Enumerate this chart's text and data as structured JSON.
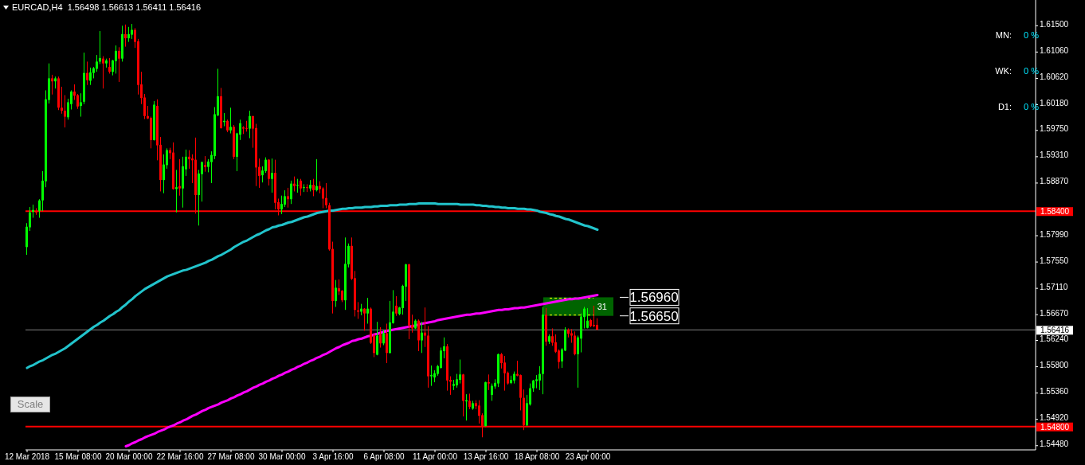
{
  "chart_data": {
    "type": "candlestick",
    "title": "EURCAD,H4  1.56498 1.56613 1.56411 1.56416",
    "categories": [
      "12 Mar 2018",
      null,
      null,
      null,
      null,
      null,
      null,
      null,
      null,
      null,
      null,
      null,
      null,
      null,
      null,
      null,
      "15 Mar 08:00",
      null,
      null,
      null,
      null,
      null,
      null,
      null,
      null,
      null,
      null,
      null,
      null,
      null,
      null,
      null,
      "20 Mar 00:00",
      null,
      null,
      null,
      null,
      null,
      null,
      null,
      null,
      null,
      null,
      null,
      null,
      null,
      null,
      null,
      "22 Mar 16:00",
      null,
      null,
      null,
      null,
      null,
      null,
      null,
      null,
      null,
      null,
      null,
      null,
      null,
      null,
      null,
      "27 Mar 08:00",
      null,
      null,
      null,
      null,
      null,
      null,
      null,
      null,
      null,
      null,
      null,
      null,
      null,
      null,
      null,
      "30 Mar 00:00",
      null,
      null,
      null,
      null,
      null,
      null,
      null,
      null,
      null,
      null,
      null,
      null,
      null,
      null,
      null,
      "3 Apr 16:00",
      null,
      null,
      null,
      null,
      null,
      null,
      null,
      null,
      null,
      null,
      null,
      null,
      null,
      null,
      null,
      "6 Apr 08:00",
      null,
      null,
      null,
      null,
      null,
      null,
      null,
      null,
      null,
      null,
      null,
      null,
      null,
      null,
      null,
      "11 Apr 00:00",
      null,
      null,
      null,
      null,
      null,
      null,
      null,
      null,
      null,
      null,
      null,
      null,
      null,
      null,
      null,
      "13 Apr 16:00",
      null,
      null,
      null,
      null,
      null,
      null,
      null,
      null,
      null,
      null,
      null,
      null,
      null,
      null,
      null,
      "18 Apr 08:00",
      null,
      null,
      null,
      null,
      null,
      null,
      null,
      null,
      null,
      null,
      null,
      null,
      null,
      null,
      null,
      "23 Apr 00:00",
      null,
      null,
      null
    ],
    "ohlc": [
      [
        1.578,
        1.582,
        1.5767,
        1.5814
      ],
      [
        1.5813,
        1.5847,
        1.5807,
        1.5838
      ],
      [
        1.5839,
        1.5851,
        1.5829,
        1.5842
      ],
      [
        1.584,
        1.5845,
        1.5834,
        1.5838
      ],
      [
        1.584,
        1.586,
        1.5829,
        1.5858
      ],
      [
        1.5858,
        1.5907,
        1.584,
        1.5891
      ],
      [
        1.589,
        1.6042,
        1.588,
        1.6027
      ],
      [
        1.6026,
        1.6087,
        1.602,
        1.6062
      ],
      [
        1.6062,
        1.6068,
        1.6035,
        1.6057
      ],
      [
        1.6057,
        1.6065,
        1.6045,
        1.6062
      ],
      [
        1.6062,
        1.6065,
        1.6009,
        1.6013
      ],
      [
        1.6013,
        1.6048,
        1.6003,
        1.6008
      ],
      [
        1.6008,
        1.6034,
        1.598,
        1.5998
      ],
      [
        1.5997,
        1.6028,
        1.5993,
        1.6022
      ],
      [
        1.6019,
        1.6042,
        1.601,
        1.604
      ],
      [
        1.604,
        1.6052,
        1.6026,
        1.6033
      ],
      [
        1.6034,
        1.6036,
        1.6011,
        1.6015
      ],
      [
        1.6016,
        1.6037,
        1.5998,
        1.6022
      ],
      [
        1.6023,
        1.6105,
        1.6019,
        1.6071
      ],
      [
        1.6071,
        1.609,
        1.6051,
        1.6059
      ],
      [
        1.6058,
        1.608,
        1.6051,
        1.6072
      ],
      [
        1.6071,
        1.6081,
        1.6062,
        1.6079
      ],
      [
        1.6078,
        1.6101,
        1.6073,
        1.609
      ],
      [
        1.609,
        1.6141,
        1.6086,
        1.6096
      ],
      [
        1.6095,
        1.6099,
        1.6045,
        1.6087
      ],
      [
        1.6087,
        1.6095,
        1.608,
        1.6092
      ],
      [
        1.6081,
        1.6096,
        1.607,
        1.6073
      ],
      [
        1.6073,
        1.6093,
        1.6067,
        1.6092
      ],
      [
        1.6091,
        1.6117,
        1.607,
        1.6108
      ],
      [
        1.6108,
        1.6114,
        1.6056,
        1.6095
      ],
      [
        1.6095,
        1.615,
        1.609,
        1.6136
      ],
      [
        1.6136,
        1.6152,
        1.6115,
        1.6129
      ],
      [
        1.6129,
        1.6148,
        1.6123,
        1.6136
      ],
      [
        1.6135,
        1.6153,
        1.6128,
        1.6143
      ],
      [
        1.6143,
        1.6146,
        1.6113,
        1.6123
      ],
      [
        1.6124,
        1.6128,
        1.6035,
        1.6051
      ],
      [
        1.6052,
        1.6073,
        1.6019,
        1.6029
      ],
      [
        1.603,
        1.6036,
        1.5994,
        1.5999
      ],
      [
        1.5999,
        1.6016,
        1.5994,
        1.5995
      ],
      [
        1.5996,
        1.5998,
        1.5945,
        1.5959
      ],
      [
        1.5959,
        1.6024,
        1.5958,
        1.6018
      ],
      [
        1.6016,
        1.6027,
        1.5925,
        1.595
      ],
      [
        1.5951,
        1.5964,
        1.5873,
        1.5892
      ],
      [
        1.5892,
        1.5935,
        1.587,
        1.5918
      ],
      [
        1.5917,
        1.5945,
        1.5911,
        1.5942
      ],
      [
        1.5942,
        1.5946,
        1.5927,
        1.5937
      ],
      [
        1.5938,
        1.5955,
        1.5876,
        1.5877
      ],
      [
        1.5877,
        1.5909,
        1.5838,
        1.588
      ],
      [
        1.5882,
        1.5927,
        1.5866,
        1.5878
      ],
      [
        1.5878,
        1.5931,
        1.5846,
        1.5915
      ],
      [
        1.591,
        1.5943,
        1.5899,
        1.5931
      ],
      [
        1.5931,
        1.5942,
        1.5911,
        1.5927
      ],
      [
        1.5928,
        1.5935,
        1.5887,
        1.5925
      ],
      [
        1.5926,
        1.5963,
        1.5836,
        1.5867
      ],
      [
        1.5867,
        1.5909,
        1.5816,
        1.5903
      ],
      [
        1.5902,
        1.5923,
        1.5856,
        1.5922
      ],
      [
        1.5917,
        1.5932,
        1.5906,
        1.5914
      ],
      [
        1.5914,
        1.5927,
        1.5905,
        1.5923
      ],
      [
        1.5922,
        1.594,
        1.5887,
        1.5934
      ],
      [
        1.5932,
        1.6014,
        1.5927,
        1.6002
      ],
      [
        1.6,
        1.6078,
        1.5999,
        1.6032
      ],
      [
        1.6032,
        1.6046,
        1.5978,
        1.5979
      ],
      [
        1.5989,
        1.6004,
        1.5982,
        1.5991
      ],
      [
        1.5991,
        1.5993,
        1.5972,
        1.5975
      ],
      [
        1.5975,
        1.6013,
        1.597,
        1.5981
      ],
      [
        1.5981,
        1.5984,
        1.5927,
        1.5931
      ],
      [
        1.5931,
        1.5971,
        1.5907,
        1.597
      ],
      [
        1.5968,
        1.5993,
        1.5959,
        1.5987
      ],
      [
        1.598,
        1.5982,
        1.5969,
        1.5978
      ],
      [
        1.5979,
        1.5991,
        1.5973,
        1.5978
      ],
      [
        1.5978,
        1.6008,
        1.5962,
        1.5999
      ],
      [
        1.5999,
        1.5999,
        1.5946,
        1.5978
      ],
      [
        1.5979,
        1.5986,
        1.5882,
        1.5913
      ],
      [
        1.5914,
        1.5928,
        1.5879,
        1.5899
      ],
      [
        1.59,
        1.5915,
        1.5888,
        1.5908
      ],
      [
        1.5907,
        1.593,
        1.5904,
        1.5926
      ],
      [
        1.5926,
        1.5927,
        1.5883,
        1.5894
      ],
      [
        1.5894,
        1.5928,
        1.5871,
        1.5904
      ],
      [
        1.5904,
        1.5926,
        1.5843,
        1.5854
      ],
      [
        1.5855,
        1.5861,
        1.5833,
        1.5843
      ],
      [
        1.5843,
        1.5866,
        1.5835,
        1.5852
      ],
      [
        1.5851,
        1.5875,
        1.5847,
        1.5865
      ],
      [
        1.5865,
        1.5879,
        1.5846,
        1.586
      ],
      [
        1.586,
        1.5891,
        1.5852,
        1.5886
      ],
      [
        1.5886,
        1.5898,
        1.5873,
        1.5882
      ],
      [
        1.5883,
        1.5894,
        1.5871,
        1.5884
      ],
      [
        1.5891,
        1.5894,
        1.5866,
        1.5878
      ],
      [
        1.5879,
        1.5885,
        1.5872,
        1.588
      ],
      [
        1.588,
        1.5885,
        1.5872,
        1.5879
      ],
      [
        1.5878,
        1.5892,
        1.5873,
        1.5884
      ],
      [
        1.5884,
        1.5894,
        1.5865,
        1.5875
      ],
      [
        1.5875,
        1.5927,
        1.5873,
        1.5882
      ],
      [
        1.5882,
        1.589,
        1.587,
        1.5877
      ],
      [
        1.5878,
        1.588,
        1.5845,
        1.5861
      ],
      [
        1.5862,
        1.5887,
        1.5845,
        1.585
      ],
      [
        1.585,
        1.5854,
        1.5774,
        1.5776
      ],
      [
        1.5777,
        1.5789,
        1.5669,
        1.569
      ],
      [
        1.569,
        1.5725,
        1.568,
        1.5712
      ],
      [
        1.5711,
        1.5726,
        1.57,
        1.5706
      ],
      [
        1.5707,
        1.5708,
        1.5688,
        1.5691
      ],
      [
        1.5691,
        1.5796,
        1.5675,
        1.5752
      ],
      [
        1.5751,
        1.5786,
        1.5746,
        1.5782
      ],
      [
        1.5782,
        1.5796,
        1.5725,
        1.5727
      ],
      [
        1.5728,
        1.574,
        1.5664,
        1.5675
      ],
      [
        1.5674,
        1.5688,
        1.566,
        1.5672
      ],
      [
        1.5672,
        1.5685,
        1.5666,
        1.5677
      ],
      [
        1.5677,
        1.5678,
        1.564,
        1.5669
      ],
      [
        1.5669,
        1.5695,
        1.5652,
        1.5677
      ],
      [
        1.5677,
        1.5679,
        1.5618,
        1.562
      ],
      [
        1.5632,
        1.5636,
        1.5596,
        1.5603
      ],
      [
        1.56,
        1.5655,
        1.5599,
        1.5632
      ],
      [
        1.5635,
        1.5646,
        1.5612,
        1.5619
      ],
      [
        1.5619,
        1.5641,
        1.5616,
        1.5636
      ],
      [
        1.5636,
        1.5652,
        1.5586,
        1.5603
      ],
      [
        1.5603,
        1.569,
        1.5602,
        1.5654
      ],
      [
        1.5653,
        1.5708,
        1.5652,
        1.5672
      ],
      [
        1.5682,
        1.5698,
        1.5665,
        1.5669
      ],
      [
        1.5668,
        1.568,
        1.5666,
        1.5679
      ],
      [
        1.5678,
        1.5717,
        1.5667,
        1.5715
      ],
      [
        1.5714,
        1.5752,
        1.569,
        1.5751
      ],
      [
        1.5751,
        1.5752,
        1.5626,
        1.5649
      ],
      [
        1.565,
        1.5667,
        1.5637,
        1.5644
      ],
      [
        1.5644,
        1.5659,
        1.5643,
        1.5657
      ],
      [
        1.5657,
        1.5659,
        1.5606,
        1.5624
      ],
      [
        1.5624,
        1.5655,
        1.5603,
        1.5637
      ],
      [
        1.5637,
        1.5679,
        1.5613,
        1.5632
      ],
      [
        1.5632,
        1.5648,
        1.5545,
        1.5564
      ],
      [
        1.5564,
        1.5582,
        1.5548,
        1.5566
      ],
      [
        1.5562,
        1.5574,
        1.5554,
        1.5569
      ],
      [
        1.5568,
        1.5583,
        1.5565,
        1.5581
      ],
      [
        1.5578,
        1.5612,
        1.5577,
        1.5607
      ],
      [
        1.5606,
        1.5629,
        1.5594,
        1.5614
      ],
      [
        1.5614,
        1.5618,
        1.554,
        1.5557
      ],
      [
        1.5558,
        1.5564,
        1.5533,
        1.5555
      ],
      [
        1.5548,
        1.5558,
        1.5541,
        1.5551
      ],
      [
        1.5549,
        1.5568,
        1.5545,
        1.5559
      ],
      [
        1.5558,
        1.5592,
        1.5552,
        1.5567
      ],
      [
        1.5567,
        1.5568,
        1.5497,
        1.5523
      ],
      [
        1.5522,
        1.5534,
        1.549,
        1.5524
      ],
      [
        1.5523,
        1.5535,
        1.5509,
        1.5513
      ],
      [
        1.551,
        1.5523,
        1.5508,
        1.5519
      ],
      [
        1.5519,
        1.5524,
        1.5509,
        1.5514
      ],
      [
        1.5515,
        1.5524,
        1.5485,
        1.5498
      ],
      [
        1.5499,
        1.5502,
        1.5462,
        1.5481
      ],
      [
        1.5481,
        1.5555,
        1.548,
        1.5554
      ],
      [
        1.5554,
        1.5567,
        1.5541,
        1.5552
      ],
      [
        1.5533,
        1.5552,
        1.5523,
        1.5548
      ],
      [
        1.5547,
        1.5559,
        1.5543,
        1.5553
      ],
      [
        1.5552,
        1.5602,
        1.5546,
        1.5601
      ],
      [
        1.5601,
        1.5603,
        1.5577,
        1.5586
      ],
      [
        1.5587,
        1.5598,
        1.554,
        1.5569
      ],
      [
        1.557,
        1.5572,
        1.555,
        1.5552
      ],
      [
        1.5553,
        1.5565,
        1.5551,
        1.5558
      ],
      [
        1.5557,
        1.5572,
        1.5552,
        1.5568
      ],
      [
        1.5568,
        1.559,
        1.5564,
        1.5565
      ],
      [
        1.5566,
        1.5567,
        1.5507,
        1.5528
      ],
      [
        1.5528,
        1.5542,
        1.5474,
        1.5482
      ],
      [
        1.5482,
        1.5533,
        1.5481,
        1.5519
      ],
      [
        1.5517,
        1.5552,
        1.5515,
        1.5544
      ],
      [
        1.5544,
        1.5558,
        1.5538,
        1.5557
      ],
      [
        1.5556,
        1.5566,
        1.5544,
        1.5559
      ],
      [
        1.5557,
        1.5581,
        1.5541,
        1.5568
      ],
      [
        1.5568,
        1.568,
        1.5534,
        1.5667
      ],
      [
        1.5667,
        1.5678,
        1.5615,
        1.5622
      ],
      [
        1.5622,
        1.5634,
        1.5618,
        1.5631
      ],
      [
        1.5631,
        1.5644,
        1.5615,
        1.562
      ],
      [
        1.5621,
        1.5634,
        1.5603,
        1.5605
      ],
      [
        1.5607,
        1.5609,
        1.5577,
        1.5588
      ],
      [
        1.5589,
        1.5611,
        1.5578,
        1.5609
      ],
      [
        1.5607,
        1.5646,
        1.5606,
        1.5642
      ],
      [
        1.5642,
        1.5644,
        1.5629,
        1.5635
      ],
      [
        1.5636,
        1.5643,
        1.562,
        1.5632
      ],
      [
        1.5632,
        1.5639,
        1.5599,
        1.5601
      ],
      [
        1.5601,
        1.5632,
        1.5545,
        1.5629
      ],
      [
        1.5627,
        1.5669,
        1.5604,
        1.5664
      ],
      [
        1.5663,
        1.568,
        1.5644,
        1.5677
      ],
      [
        1.5645,
        1.5678,
        1.5644,
        1.5657
      ],
      [
        1.5658,
        1.566,
        1.5646,
        1.5648
      ],
      [
        1.565,
        1.5682,
        1.5646,
        1.5648
      ],
      [
        1.565,
        1.5661,
        1.5641,
        1.5642
      ]
    ],
    "colors": [
      "#00ff00",
      "#00ff00",
      "#00ff00",
      "#ff0000",
      "#00ff00",
      "#00ff00",
      "#00ff00",
      "#00ff00",
      "#ff0000",
      "#00ff00",
      "#ff0000",
      "#ff0000",
      "#ff0000",
      "#00ff00",
      "#00ff00",
      "#ff0000",
      "#ff0000",
      "#00ff00",
      "#00ff00",
      "#ff0000",
      "#00ff00",
      "#00ff00",
      "#00ff00",
      "#00ff00",
      "#ff0000",
      "#00ff00",
      "#ff0000",
      "#00ff00",
      "#00ff00",
      "#ff0000",
      "#00ff00",
      "#ff0000",
      "#00ff00",
      "#00ff00",
      "#ff0000",
      "#ff0000",
      "#ff0000",
      "#ff0000",
      "#ff0000",
      "#ff0000",
      "#00ff00",
      "#ff0000",
      "#ff0000",
      "#00ff00",
      "#00ff00",
      "#ff0000",
      "#ff0000",
      "#00ff00",
      "#ff0000",
      "#00ff00",
      "#00ff00",
      "#ff0000",
      "#ff0000",
      "#ff0000",
      "#00ff00",
      "#00ff00",
      "#ff0000",
      "#00ff00",
      "#00ff00",
      "#00ff00",
      "#00ff00",
      "#ff0000",
      "#00ff00",
      "#ff0000",
      "#00ff00",
      "#ff0000",
      "#00ff00",
      "#00ff00",
      "#ff0000",
      "#ff0000",
      "#00ff00",
      "#ff0000",
      "#ff0000",
      "#ff0000",
      "#00ff00",
      "#00ff00",
      "#ff0000",
      "#00ff00",
      "#ff0000",
      "#ff0000",
      "#00ff00",
      "#00ff00",
      "#ff0000",
      "#00ff00",
      "#ff0000",
      "#00ff00",
      "#ff0000",
      "#00ff00",
      "#ff0000",
      "#00ff00",
      "#ff0000",
      "#00ff00",
      "#ff0000",
      "#ff0000",
      "#ff0000",
      "#ff0000",
      "#ff0000",
      "#00ff00",
      "#ff0000",
      "#ff0000",
      "#00ff00",
      "#00ff00",
      "#ff0000",
      "#ff0000",
      "#ff0000",
      "#00ff00",
      "#ff0000",
      "#00ff00",
      "#ff0000",
      "#ff0000",
      "#00ff00",
      "#ff0000",
      "#00ff00",
      "#ff0000",
      "#00ff00",
      "#00ff00",
      "#ff0000",
      "#00ff00",
      "#00ff00",
      "#00ff00",
      "#ff0000",
      "#ff0000",
      "#00ff00",
      "#ff0000",
      "#00ff00",
      "#ff0000",
      "#ff0000",
      "#00ff00",
      "#00ff00",
      "#00ff00",
      "#00ff00",
      "#00ff00",
      "#ff0000",
      "#ff0000",
      "#00ff00",
      "#00ff00",
      "#00ff00",
      "#ff0000",
      "#00ff00",
      "#ff0000",
      "#00ff00",
      "#ff0000",
      "#ff0000",
      "#ff0000",
      "#00ff00",
      "#ff0000",
      "#00ff00",
      "#00ff00",
      "#00ff00",
      "#ff0000",
      "#ff0000",
      "#ff0000",
      "#00ff00",
      "#00ff00",
      "#ff0000",
      "#ff0000",
      "#ff0000",
      "#00ff00",
      "#00ff00",
      "#00ff00",
      "#00ff00",
      "#00ff00",
      "#00ff00",
      "#ff0000",
      "#00ff00",
      "#ff0000",
      "#ff0000",
      "#ff0000",
      "#00ff00",
      "#00ff00",
      "#ff0000",
      "#ff0000",
      "#ff0000",
      "#00ff00",
      "#00ff00",
      "#00ff00",
      "#00ff00",
      "#ff0000",
      "#ff0000",
      "#ff0000"
    ],
    "series": [
      {
        "type": "line",
        "color": "#22c4cc",
        "values": [
          1.5578,
          1.5581,
          1.5583,
          1.5586,
          1.5589,
          1.5591,
          1.5594,
          1.5597,
          1.56,
          1.5602,
          1.5605,
          1.5608,
          1.5611,
          1.5615,
          1.5619,
          1.5623,
          1.5627,
          1.5631,
          1.5635,
          1.5639,
          1.5643,
          1.5647,
          1.565,
          1.5654,
          1.5657,
          1.5661,
          1.5665,
          1.5668,
          1.5672,
          1.5675,
          1.568,
          1.5684,
          1.5689,
          1.5693,
          1.5698,
          1.5702,
          1.5706,
          1.571,
          1.5713,
          1.5716,
          1.5719,
          1.5722,
          1.5725,
          1.5728,
          1.5731,
          1.5733,
          1.5735,
          1.5737,
          1.5739,
          1.5741,
          1.5742,
          1.5744,
          1.5746,
          1.5748,
          1.575,
          1.5752,
          1.5754,
          1.5757,
          1.5759,
          1.5762,
          1.5765,
          1.5767,
          1.577,
          1.5773,
          1.5776,
          1.578,
          1.5783,
          1.5786,
          1.5789,
          1.5791,
          1.5794,
          1.5797,
          1.58,
          1.5802,
          1.5805,
          1.5808,
          1.581,
          1.5813,
          1.5814,
          1.5816,
          1.5817,
          1.5819,
          1.5821,
          1.5822,
          1.5824,
          1.5826,
          1.5828,
          1.583,
          1.5831,
          1.5833,
          1.5835,
          1.5837,
          1.5838,
          1.5839,
          1.584,
          1.5841,
          1.5841,
          1.5842,
          1.5843,
          1.5844,
          1.5844,
          1.5845,
          1.5845,
          1.5846,
          1.5846,
          1.5846,
          1.5847,
          1.5847,
          1.5847,
          1.5848,
          1.5848,
          1.5849,
          1.5849,
          1.5849,
          1.585,
          1.585,
          1.585,
          1.5851,
          1.5851,
          1.5851,
          1.5852,
          1.5852,
          1.5852,
          1.5853,
          1.5853,
          1.5853,
          1.5853,
          1.5853,
          1.5853,
          1.5852,
          1.5852,
          1.5852,
          1.5852,
          1.5852,
          1.5852,
          1.5852,
          1.5851,
          1.5851,
          1.5851,
          1.5851,
          1.5851,
          1.585,
          1.585,
          1.5849,
          1.5849,
          1.5848,
          1.5848,
          1.5847,
          1.5847,
          1.5846,
          1.5846,
          1.5845,
          1.5845,
          1.5845,
          1.5844,
          1.5844,
          1.5844,
          1.5843,
          1.5843,
          1.5842,
          1.5841,
          1.5839,
          1.5838,
          1.5837,
          1.5835,
          1.5834,
          1.5832,
          1.5831,
          1.5829,
          1.5827,
          1.5826,
          1.5824,
          1.5822,
          1.582,
          1.5818,
          1.5816,
          1.5815,
          1.5813,
          1.5811,
          1.5809
        ]
      },
      {
        "type": "line",
        "color": "#ff00ff",
        "values": [
          null,
          null,
          null,
          null,
          null,
          null,
          null,
          null,
          null,
          null,
          null,
          null,
          null,
          null,
          null,
          null,
          null,
          null,
          null,
          null,
          null,
          null,
          null,
          null,
          null,
          null,
          null,
          null,
          null,
          null,
          null,
          1.5447,
          1.5449,
          1.5452,
          1.5454,
          1.5457,
          1.5459,
          1.5462,
          1.5464,
          1.5466,
          1.5468,
          1.5471,
          1.5473,
          1.5475,
          1.5478,
          1.548,
          1.5482,
          1.5485,
          1.5487,
          1.549,
          1.5492,
          1.5495,
          1.5498,
          1.55,
          1.5503,
          1.5506,
          1.5508,
          1.5511,
          1.5513,
          1.5515,
          1.5517,
          1.552,
          1.5522,
          1.5524,
          1.5527,
          1.5529,
          1.5532,
          1.5534,
          1.5537,
          1.5539,
          1.5542,
          1.5545,
          1.5547,
          1.555,
          1.5552,
          1.5555,
          1.5557,
          1.556,
          1.5562,
          1.5565,
          1.5567,
          1.557,
          1.5572,
          1.5575,
          1.5577,
          1.558,
          1.5582,
          1.5585,
          1.5587,
          1.559,
          1.5592,
          1.5595,
          1.5597,
          1.56,
          1.5602,
          1.5605,
          1.5608,
          1.5611,
          1.5613,
          1.5616,
          1.5618,
          1.562,
          1.5623,
          1.5624,
          1.5626,
          1.5627,
          1.5629,
          1.5631,
          1.5632,
          1.5634,
          1.5635,
          1.5637,
          1.5638,
          1.564,
          1.5641,
          1.5642,
          1.5643,
          1.5644,
          1.5645,
          1.5646,
          1.5647,
          1.5648,
          1.5649,
          1.5651,
          1.5652,
          1.5653,
          1.5654,
          1.5655,
          1.5656,
          1.5658,
          1.5659,
          1.566,
          1.5661,
          1.5662,
          1.5663,
          1.5664,
          1.5665,
          1.5666,
          1.5667,
          1.5667,
          1.5668,
          1.5669,
          1.5669,
          1.567,
          1.5671,
          1.5672,
          1.5673,
          1.5674,
          1.5675,
          1.5675,
          1.5676,
          1.5676,
          1.5677,
          1.5678,
          1.5678,
          1.5679,
          1.5679,
          1.568,
          1.5681,
          1.5682,
          1.5683,
          1.5684,
          1.5685,
          1.5686,
          1.5687,
          1.5688,
          1.5689,
          1.569,
          1.5691,
          1.5692,
          1.5693,
          1.5693,
          1.5694,
          1.5694,
          1.5695,
          1.5696,
          1.5697,
          1.5698,
          1.5699,
          1.57
        ]
      }
    ],
    "ylim": [
      1.5441,
      1.6193
    ],
    "yticks": [
      {
        "value": 1.615,
        "label": "1.61500"
      },
      {
        "value": 1.6106,
        "label": "1.61060"
      },
      {
        "value": 1.6062,
        "label": "1.60620"
      },
      {
        "value": 1.6018,
        "label": "1.60180"
      },
      {
        "value": 1.5975,
        "label": "1.59750"
      },
      {
        "value": 1.5931,
        "label": "1.59310"
      },
      {
        "value": 1.5887,
        "label": "1.58870"
      },
      {
        "value": 1.5799,
        "label": "1.57990"
      },
      {
        "value": 1.5755,
        "label": "1.57550"
      },
      {
        "value": 1.5711,
        "label": "1.57110"
      },
      {
        "value": 1.5667,
        "label": "1.56670"
      },
      {
        "value": 1.5624,
        "label": "1.56240"
      },
      {
        "value": 1.558,
        "label": "1.55800"
      },
      {
        "value": 1.5536,
        "label": "1.55360"
      },
      {
        "value": 1.5492,
        "label": "1.54920"
      },
      {
        "value": 1.5448,
        "label": "1.54480"
      }
    ],
    "ref_lines": [
      {
        "axis": "y",
        "value": 1.584,
        "label": "1.58400",
        "color": "#ff0000"
      },
      {
        "axis": "y",
        "value": 1.548,
        "label": "1.54800",
        "color": "#ff0000"
      },
      {
        "axis": "y",
        "value": 1.56416,
        "label": "1.56416",
        "color": "#808080"
      }
    ],
    "bands": [
      {
        "axis": "y",
        "from": 1.5665,
        "to": 1.5696,
        "label": "31",
        "color": "#006400"
      }
    ],
    "annotations": [
      "MN:",
      "0 %",
      "WK:",
      "0 %",
      "D1:",
      "0 %",
      "Scale",
      "1.56960",
      "1.56650"
    ]
  }
}
